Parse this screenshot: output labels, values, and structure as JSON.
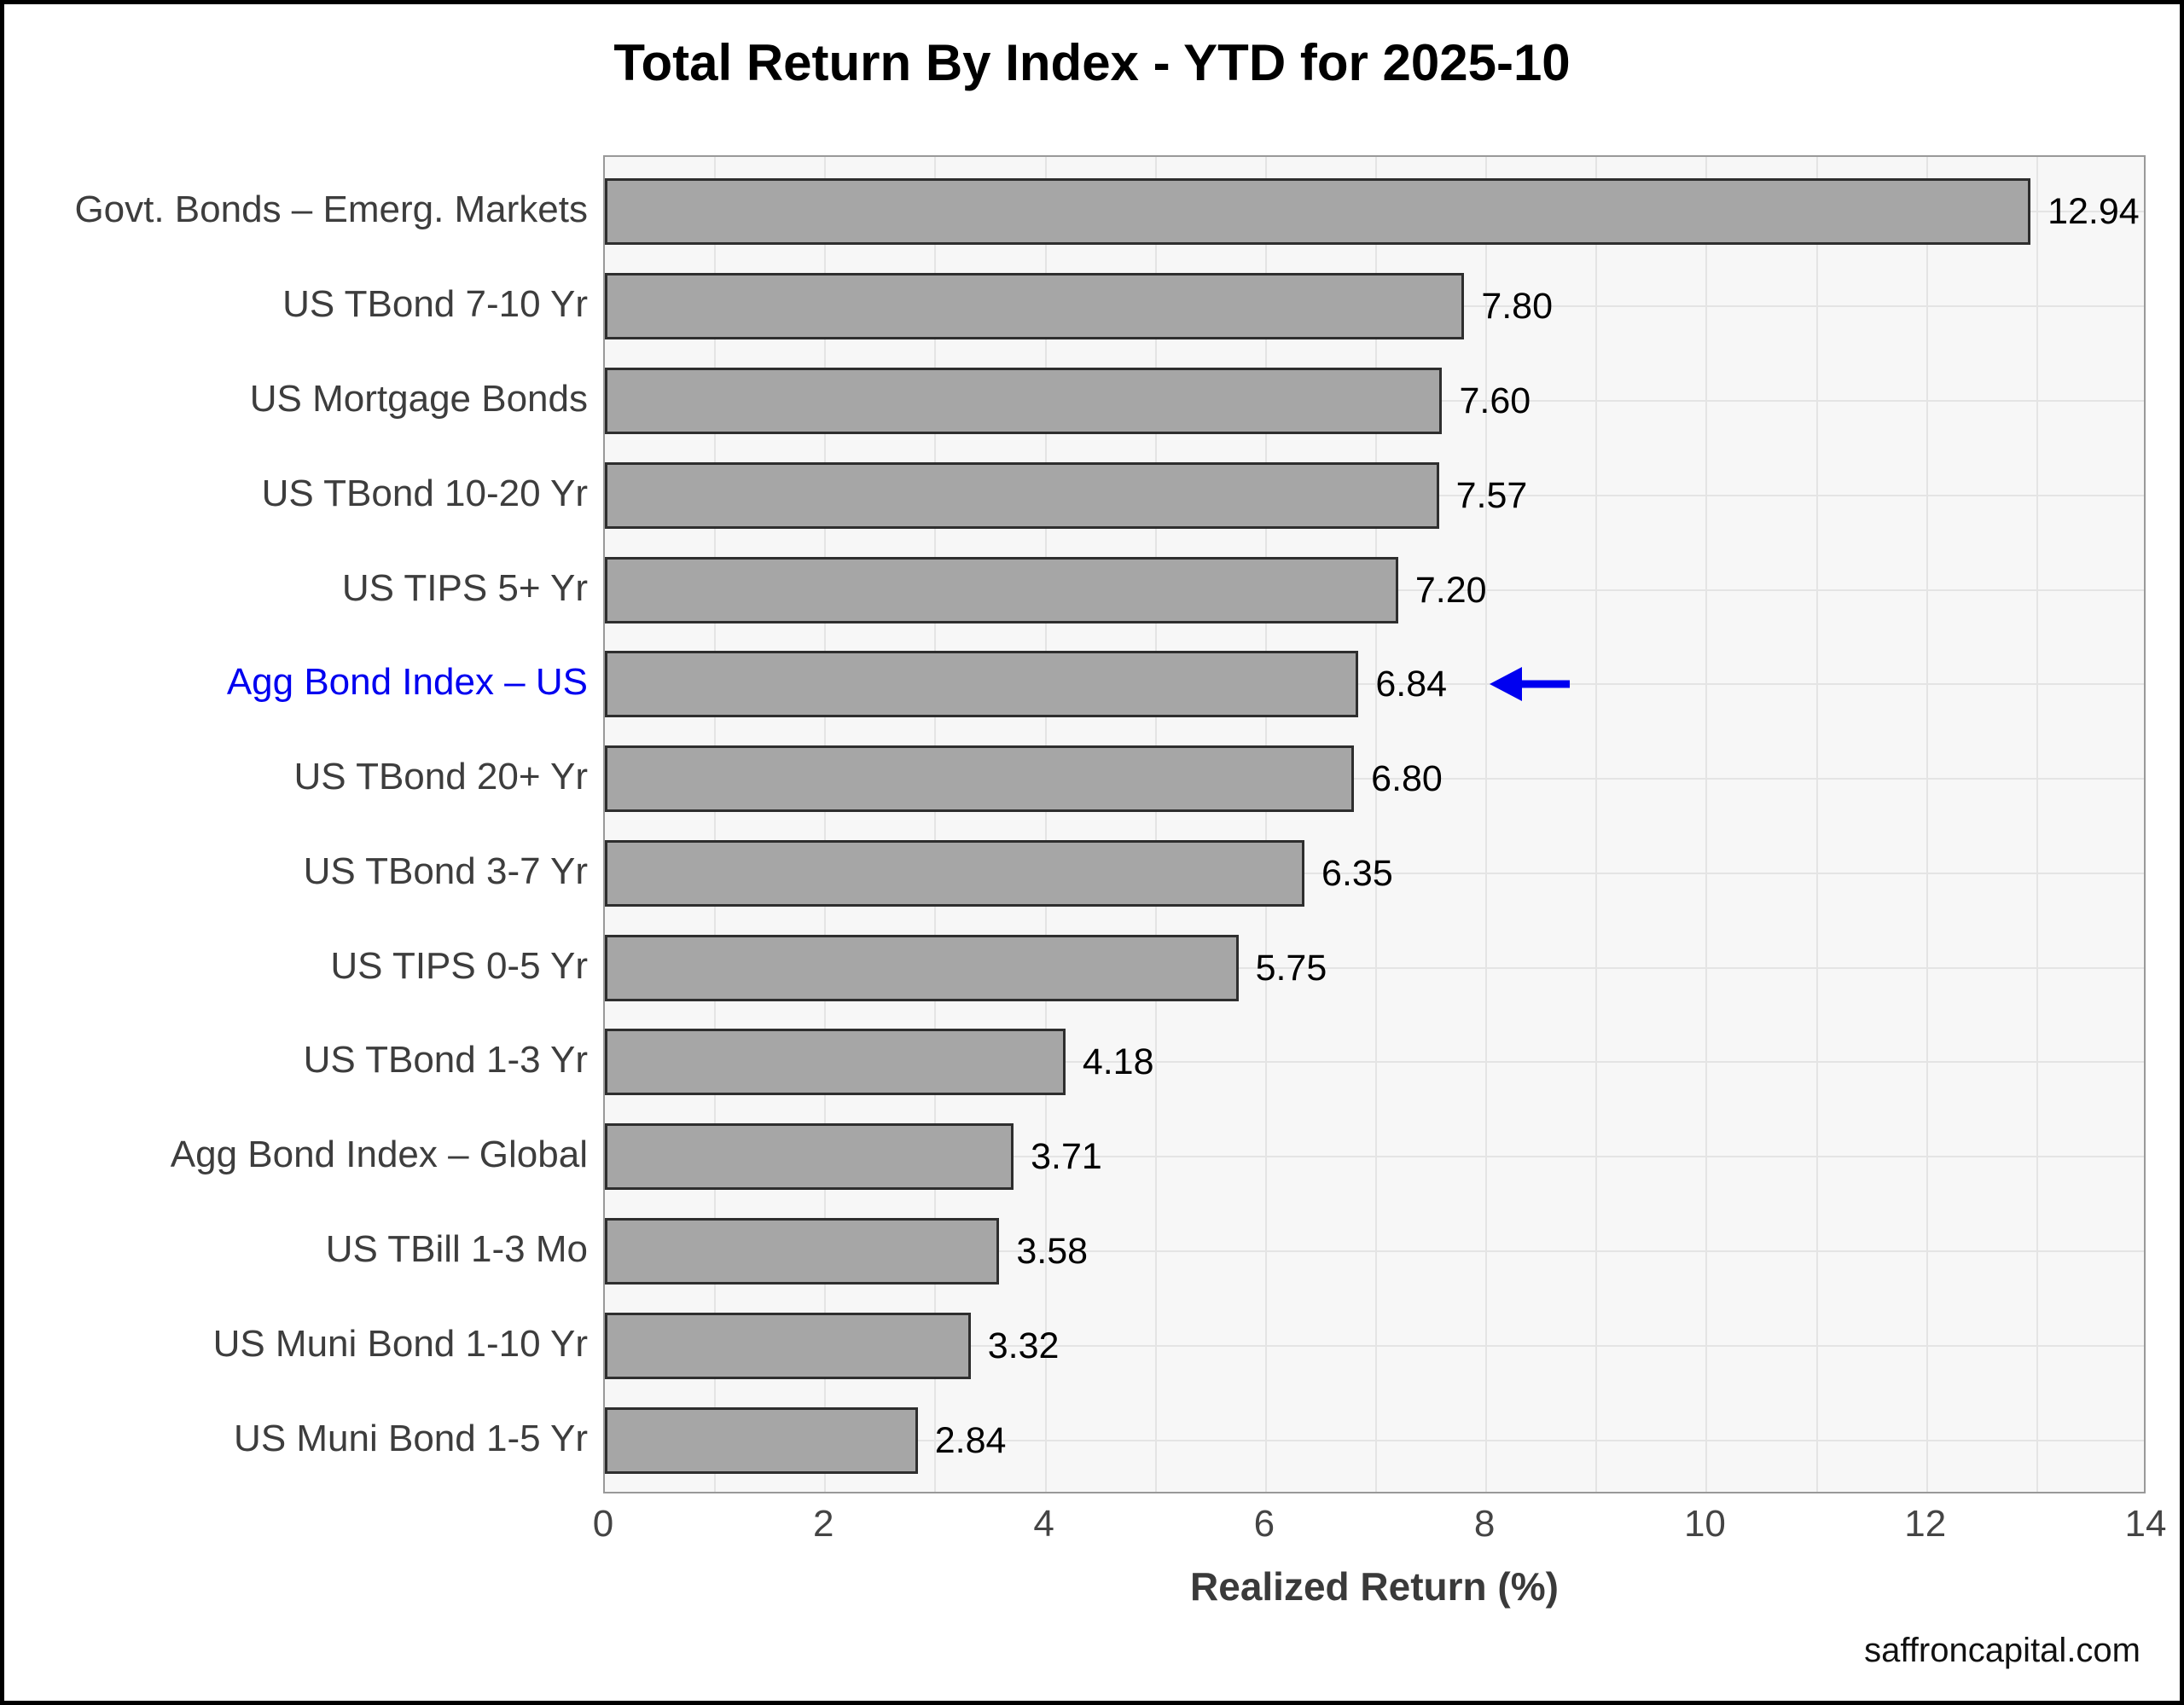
{
  "watermark": "saffroncapital.com",
  "chart_data": {
    "type": "bar",
    "orientation": "horizontal",
    "title": "Total Return By Index - YTD for 2025-10",
    "xlabel": "Realized Return (%)",
    "ylabel": "",
    "xlim": [
      0,
      14
    ],
    "xticks": [
      0,
      2,
      4,
      6,
      8,
      10,
      12,
      14
    ],
    "grid": "on",
    "legend": "none",
    "categories": [
      "Govt. Bonds – Emerg. Markets",
      "US TBond 7-10 Yr",
      "US Mortgage Bonds",
      "US TBond 10-20 Yr",
      "US TIPS 5+ Yr",
      "Agg Bond Index – US",
      "US TBond 20+ Yr",
      "US TBond 3-7 Yr",
      "US TIPS 0-5 Yr",
      "US TBond 1-3 Yr",
      "Agg Bond Index – Global",
      "US TBill 1-3 Mo",
      "US Muni Bond 1-10 Yr",
      "US Muni Bond 1-5 Yr"
    ],
    "values": [
      12.94,
      7.8,
      7.6,
      7.57,
      7.2,
      6.84,
      6.8,
      6.35,
      5.75,
      4.18,
      3.71,
      3.58,
      3.32,
      2.84
    ],
    "value_label_decimals": 2,
    "highlight": {
      "index": 5,
      "label": "Agg Bond Index – US",
      "color": "#0000F0",
      "annotation": "left-arrow"
    }
  },
  "colors": {
    "figure_bg": "#FFFFFF",
    "figure_border": "#000000",
    "plot_bg": "#F7F7F7",
    "plot_border": "#999999",
    "grid": "#E4E4E4",
    "bar_fill": "#A6A6A6",
    "bar_border": "#2E2E2E",
    "category_label": "#3D3D3D",
    "value_label": "#000000",
    "tick_label": "#444444",
    "axis_label": "#3A3A3A",
    "title_color": "#000000",
    "watermark": "#111111"
  }
}
